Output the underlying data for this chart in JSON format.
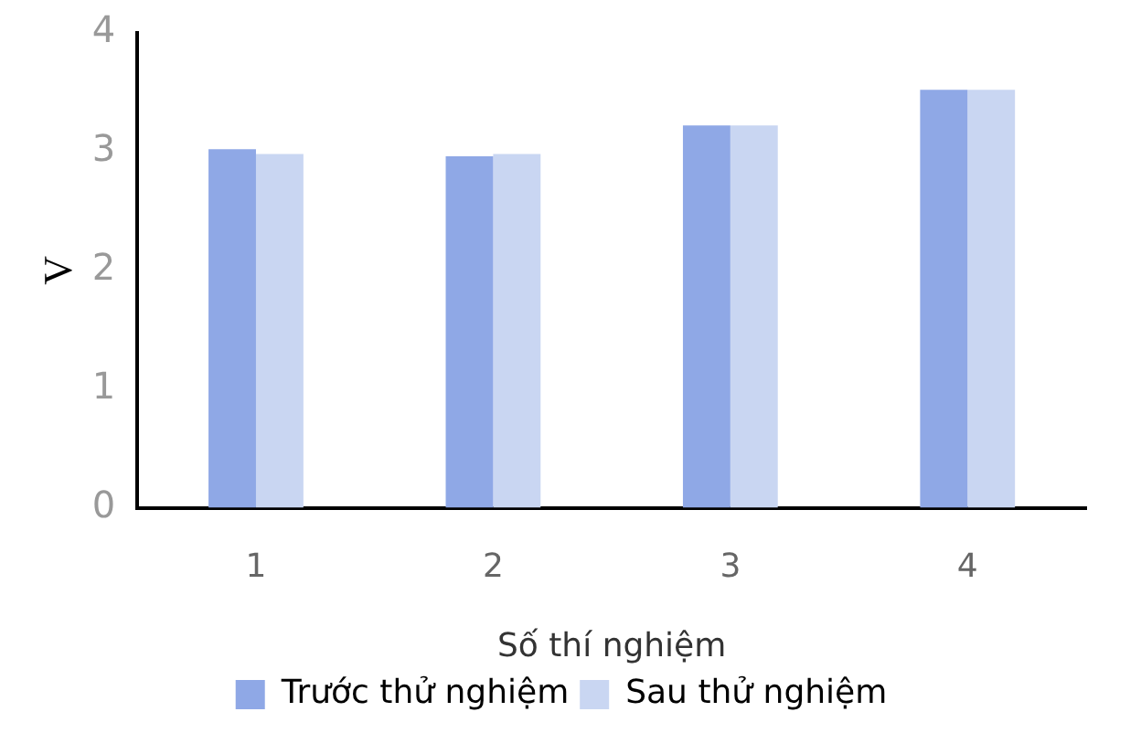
{
  "chart_data": {
    "type": "bar",
    "xlabel": "Số thí nghiệm",
    "ylabel": "V",
    "categories": [
      "1",
      "2",
      "3",
      "4"
    ],
    "series": [
      {
        "name": "Trước thử nghiệm",
        "color": "#8fa8e6",
        "values": [
          3.02,
          2.96,
          3.22,
          3.52
        ]
      },
      {
        "name": "Sau thử nghiệm",
        "color": "#c9d6f2",
        "values": [
          2.98,
          2.98,
          3.22,
          3.52
        ]
      }
    ],
    "ylim": [
      0,
      4
    ],
    "yticks": [
      0,
      1,
      2,
      3,
      4
    ],
    "grid": false,
    "legend": "bottom"
  }
}
